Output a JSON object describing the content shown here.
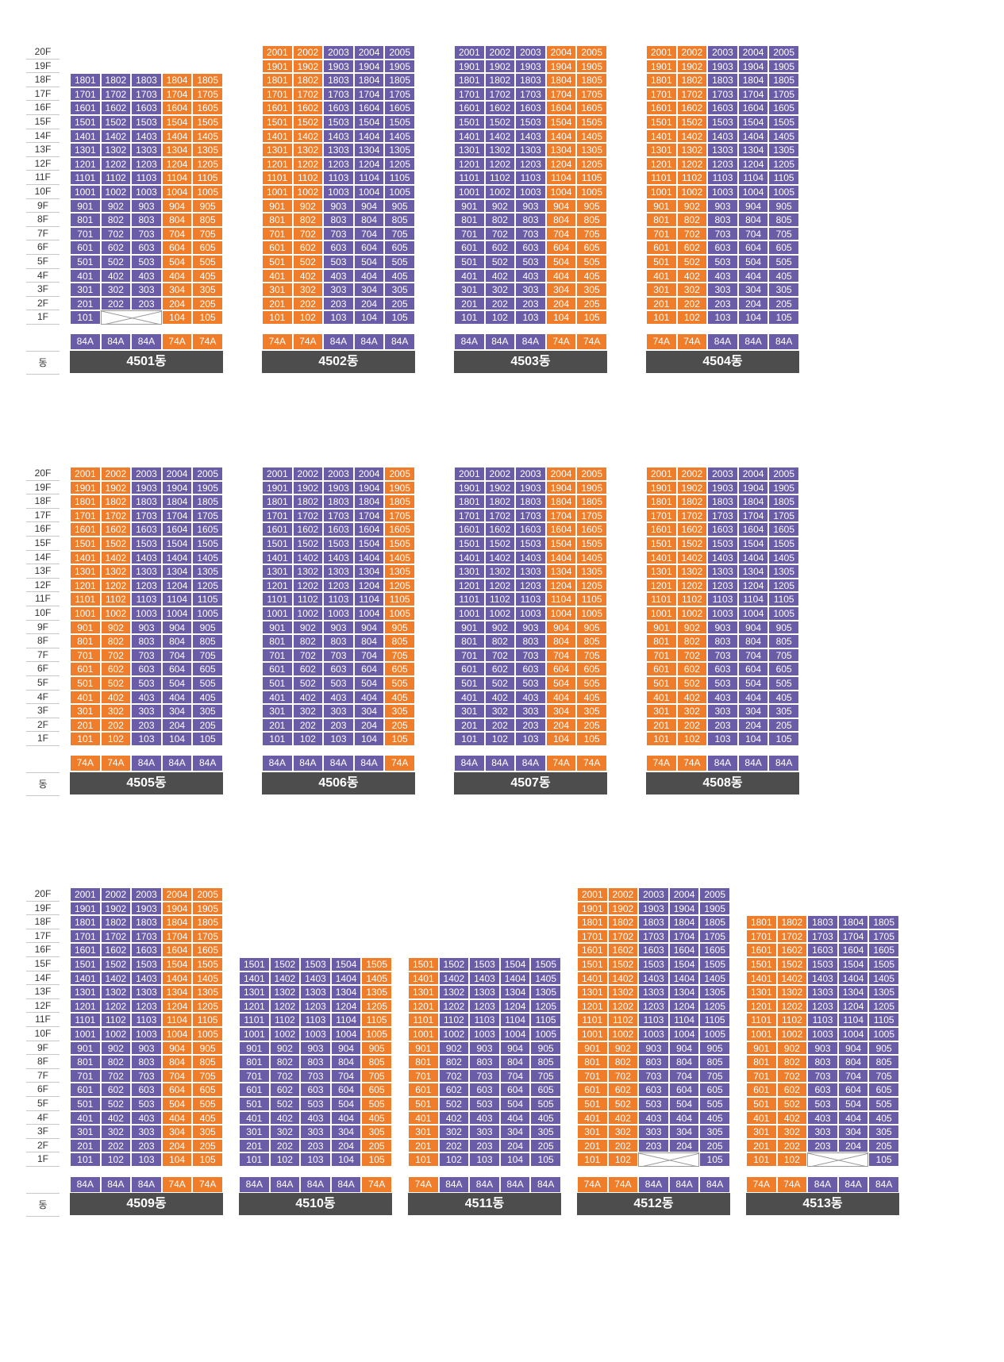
{
  "floor_labels": [
    "20F",
    "19F",
    "18F",
    "17F",
    "16F",
    "15F",
    "14F",
    "13F",
    "12F",
    "11F",
    "10F",
    "9F",
    "8F",
    "7F",
    "6F",
    "5F",
    "4F",
    "3F",
    "2F",
    "1F"
  ],
  "dong_axis_label": "동",
  "colors": {
    "purple": "#6b5ca8",
    "orange": "#ef7d2a",
    "name_bg": "#4d4d4d"
  },
  "rows": [
    {
      "buildings": [
        {
          "name": "4501동",
          "floors": 18,
          "types": [
            "84A",
            "84A",
            "84A",
            "74A",
            "74A"
          ],
          "missing_1f": [
            2,
            3
          ]
        },
        {
          "name": "4502동",
          "floors": 20,
          "types": [
            "74A",
            "74A",
            "84A",
            "84A",
            "84A"
          ],
          "missing_1f": []
        },
        {
          "name": "4503동",
          "floors": 20,
          "types": [
            "84A",
            "84A",
            "84A",
            "74A",
            "74A"
          ],
          "missing_1f": []
        },
        {
          "name": "4504동",
          "floors": 20,
          "types": [
            "74A",
            "74A",
            "84A",
            "84A",
            "84A"
          ],
          "missing_1f": []
        }
      ]
    },
    {
      "buildings": [
        {
          "name": "4505동",
          "floors": 20,
          "types": [
            "74A",
            "74A",
            "84A",
            "84A",
            "84A"
          ],
          "missing_1f": []
        },
        {
          "name": "4506동",
          "floors": 20,
          "types": [
            "84A",
            "84A",
            "84A",
            "84A",
            "74A"
          ],
          "missing_1f": []
        },
        {
          "name": "4507동",
          "floors": 20,
          "types": [
            "84A",
            "84A",
            "84A",
            "74A",
            "74A"
          ],
          "missing_1f": []
        },
        {
          "name": "4508동",
          "floors": 20,
          "types": [
            "74A",
            "74A",
            "84A",
            "84A",
            "84A"
          ],
          "missing_1f": []
        }
      ]
    },
    {
      "buildings": [
        {
          "name": "4509동",
          "floors": 20,
          "types": [
            "84A",
            "84A",
            "84A",
            "74A",
            "74A"
          ],
          "missing_1f": []
        },
        {
          "name": "4510동",
          "floors": 15,
          "types": [
            "84A",
            "84A",
            "84A",
            "84A",
            "74A"
          ],
          "missing_1f": []
        },
        {
          "name": "4511동",
          "floors": 15,
          "types": [
            "74A",
            "84A",
            "84A",
            "84A",
            "84A"
          ],
          "missing_1f": []
        },
        {
          "name": "4512동",
          "floors": 20,
          "types": [
            "74A",
            "74A",
            "84A",
            "84A",
            "84A"
          ],
          "missing_1f": [
            3,
            4
          ]
        },
        {
          "name": "4513동",
          "floors": 18,
          "types": [
            "74A",
            "74A",
            "84A",
            "84A",
            "84A"
          ],
          "missing_1f": [
            3,
            4
          ]
        }
      ]
    }
  ]
}
